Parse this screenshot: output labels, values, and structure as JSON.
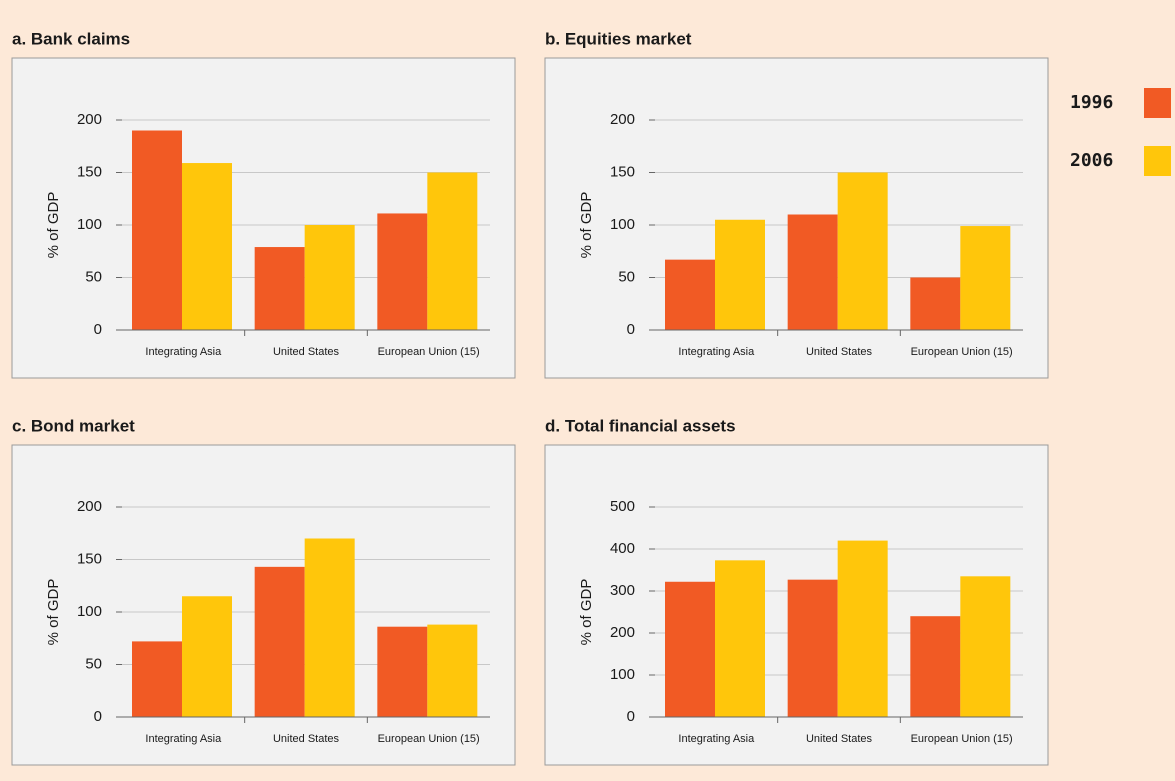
{
  "chart_data": [
    {
      "type": "bar",
      "title": "a. Bank claims",
      "y_label": "% of GDP",
      "categories": [
        "Integrating Asia",
        "United States",
        "European Union (15)"
      ],
      "series": [
        {
          "name": "1996",
          "color": "#f15a24",
          "values": [
            190,
            79,
            111
          ]
        },
        {
          "name": "2006",
          "color": "#ffc60b",
          "values": [
            159,
            100,
            150
          ]
        }
      ],
      "ylim": [
        0,
        200
      ],
      "yticks": [
        0,
        50,
        100,
        150,
        200
      ],
      "grid": true
    },
    {
      "type": "bar",
      "title": "b. Equities market",
      "y_label": "% of GDP",
      "categories": [
        "Integrating Asia",
        "United States",
        "European Union (15)"
      ],
      "series": [
        {
          "color": "#f15a24",
          "values": [
            67,
            110,
            50
          ]
        },
        {
          "color": "#ffc60b",
          "values": [
            105,
            150,
            99
          ]
        }
      ],
      "ylim": [
        0,
        200
      ],
      "yticks": [
        0,
        50,
        100,
        150,
        200
      ],
      "grid": true
    },
    {
      "type": "bar",
      "title": "c. Bond market",
      "y_label": "% of GDP",
      "categories": [
        "Integrating Asia",
        "United States",
        "European Union (15)"
      ],
      "series": [
        {
          "color": "#f15a24",
          "values": [
            72,
            143,
            86
          ]
        },
        {
          "color": "#ffc60b",
          "values": [
            115,
            170,
            88
          ]
        }
      ],
      "ylim": [
        0,
        200
      ],
      "yticks": [
        0,
        50,
        100,
        150,
        200
      ],
      "grid": true
    },
    {
      "type": "bar",
      "title": "d. Total financial assets",
      "y_label": "% of GDP",
      "categories": [
        "Integrating Asia",
        "United States",
        "European Union (15)"
      ],
      "series": [
        {
          "color": "#f15a24",
          "values": [
            322,
            327,
            240
          ]
        },
        {
          "color": "#ffc60b",
          "values": [
            373,
            420,
            335
          ]
        }
      ],
      "ylim": [
        0,
        500
      ],
      "yticks": [
        0,
        100,
        200,
        300,
        400,
        500
      ],
      "grid": true
    }
  ]
}
